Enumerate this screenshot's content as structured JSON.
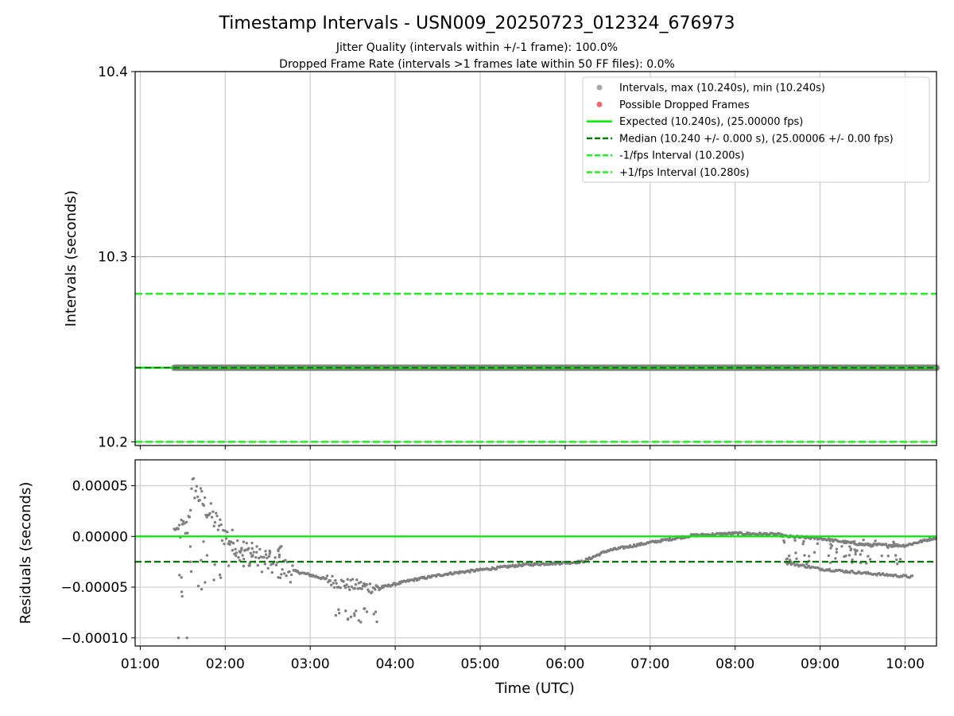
{
  "chart_data": [
    {
      "type": "scatter",
      "title": "Timestamp Intervals - USN009_20250723_012324_676973",
      "subtitle_lines": [
        "Jitter Quality (intervals within +/-1 frame): 100.0%",
        "Dropped Frame Rate (intervals >1 frames late within 50 FF files): 0.0%"
      ],
      "xlabel": "",
      "ylabel": "Intervals (seconds)",
      "xlim_hours": [
        0.94,
        10.37
      ],
      "ylim": [
        10.198,
        10.4
      ],
      "yticks": [
        10.2,
        10.3,
        10.4
      ],
      "ytick_labels": [
        "10.2",
        "10.3",
        "10.4"
      ],
      "grid": true,
      "legend_position": "upper-right",
      "legend": [
        {
          "label": "Intervals, max (10.240s), min (10.240s)",
          "kind": "marker",
          "color": "#a9a9a9"
        },
        {
          "label": "Possible Dropped Frames",
          "kind": "marker",
          "color": "#f0666b"
        },
        {
          "label": "Expected (10.240s), (25.00000 fps)",
          "kind": "line",
          "color": "#00ee00",
          "dash": "solid"
        },
        {
          "label": "Median (10.240 +/- 0.000 s), (25.00006 +/- 0.00 fps)",
          "kind": "line",
          "color": "#007a00",
          "dash": "dashed"
        },
        {
          "label": "-1/fps Interval (10.200s)",
          "kind": "line",
          "color": "#22ee22",
          "dash": "dashed"
        },
        {
          "label": "+1/fps Interval (10.280s)",
          "kind": "line",
          "color": "#22ee22",
          "dash": "dashed"
        }
      ],
      "series": [
        {
          "name": "Intervals",
          "x_hours": [
            1.4,
            10.37
          ],
          "y": [
            10.24,
            10.24
          ],
          "color": "#808080"
        },
        {
          "name": "Expected",
          "y": 10.24,
          "color": "#00ee00"
        },
        {
          "name": "Median",
          "y": 10.24,
          "color": "#007a00"
        },
        {
          "name": "-1/fps Interval",
          "y": 10.2,
          "color": "#22ee22"
        },
        {
          "name": "+1/fps Interval",
          "y": 10.28,
          "color": "#22ee22"
        }
      ]
    },
    {
      "type": "scatter",
      "title": "",
      "xlabel": "Time (UTC)",
      "ylabel": "Residuals (seconds)",
      "xlim_hours": [
        0.94,
        10.37
      ],
      "ylim": [
        -0.000108,
        7.55e-05
      ],
      "xticks_hours": [
        1,
        2,
        3,
        4,
        5,
        6,
        7,
        8,
        9,
        10
      ],
      "xtick_labels": [
        "01:00",
        "02:00",
        "03:00",
        "04:00",
        "05:00",
        "06:00",
        "07:00",
        "08:00",
        "09:00",
        "10:00"
      ],
      "yticks": [
        5e-05,
        0.0,
        -5e-05,
        -0.0001
      ],
      "ytick_labels": [
        "0.00005",
        "0.00000",
        "−0.00005",
        "−0.00010"
      ],
      "grid": true,
      "hlines": [
        {
          "name": "Expected",
          "y": 0.0,
          "color": "#00ee00",
          "dash": "solid"
        },
        {
          "name": "Median",
          "y": -2.5e-05,
          "color": "#007a00",
          "dash": "dashed"
        }
      ],
      "series": [
        {
          "name": "Residuals",
          "color": "#7f7f7f",
          "trend_x_hours": [
            1.4,
            1.55,
            1.62,
            1.8,
            2.0,
            2.3,
            2.6,
            3.0,
            3.4,
            3.8,
            4.2,
            4.6,
            5.0,
            5.5,
            6.0,
            6.2,
            6.5,
            7.0,
            7.5,
            8.0,
            8.5,
            8.6,
            9.0,
            9.5,
            10.0,
            10.37
          ],
          "trend_y": [
            7e-06,
            7e-06,
            5e-05,
            2.5e-05,
            1e-06,
            -1.8e-05,
            -3e-05,
            -3.8e-05,
            -4.7e-05,
            -5.1e-05,
            -4.3e-05,
            -3.7e-05,
            -3.3e-05,
            -2.8e-05,
            -2.6e-05,
            -2.5e-05,
            -1.4e-05,
            -6e-06,
            1e-06,
            3e-06,
            2e-06,
            0.0,
            -2e-06,
            -8e-06,
            -9e-06,
            -1e-06
          ],
          "alt_trend_x_hours": [
            8.6,
            9.0,
            9.5,
            10.1
          ],
          "alt_trend_y": [
            -2.6e-05,
            -3.2e-05,
            -3.6e-05,
            -4e-05
          ]
        }
      ]
    }
  ]
}
